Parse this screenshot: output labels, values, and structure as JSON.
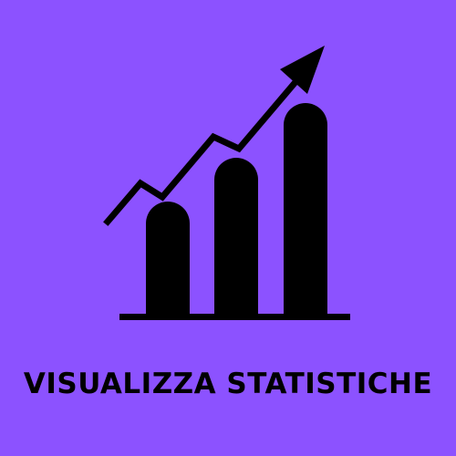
{
  "tile": {
    "label": "VISUALIZZA STATISTICHE",
    "background_color": "#8c52ff",
    "foreground_color": "#000000",
    "icon": "growth-bar-chart-icon"
  }
}
